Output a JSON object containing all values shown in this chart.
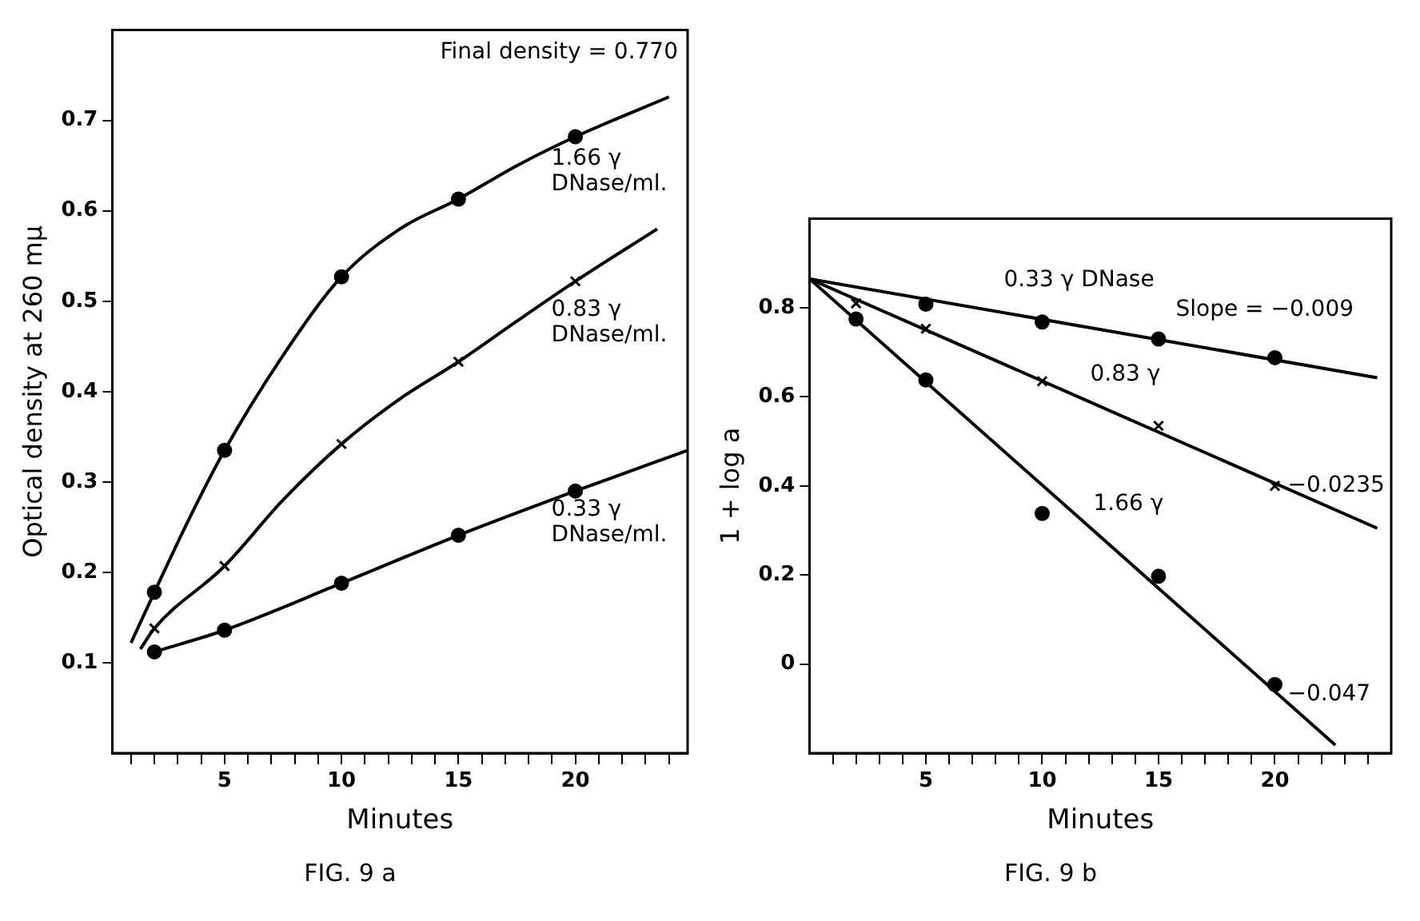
{
  "chart_data": [
    {
      "type": "scatter",
      "title": "FIG. 9 a",
      "xlabel": "Minutes",
      "ylabel": "Optical density at 260 mμ",
      "xlim": [
        0.2,
        24.8
      ],
      "ylim": [
        0,
        0.8
      ],
      "xticks": [
        {
          "value": 1,
          "label": null
        },
        {
          "value": 2,
          "label": null
        },
        {
          "value": 3,
          "label": null
        },
        {
          "value": 4,
          "label": null
        },
        5,
        {
          "value": 6,
          "label": null
        },
        {
          "value": 7,
          "label": null
        },
        {
          "value": 8,
          "label": null
        },
        {
          "value": 9,
          "label": null
        },
        10,
        {
          "value": 11,
          "label": null
        },
        {
          "value": 12,
          "label": null
        },
        {
          "value": 13,
          "label": null
        },
        {
          "value": 14,
          "label": null
        },
        15,
        {
          "value": 16,
          "label": null
        },
        {
          "value": 17,
          "label": null
        },
        {
          "value": 18,
          "label": null
        },
        {
          "value": 19,
          "label": null
        },
        20,
        {
          "value": 21,
          "label": null
        },
        {
          "value": 22,
          "label": null
        },
        {
          "value": 23,
          "label": null
        },
        {
          "value": 24,
          "label": null
        }
      ],
      "yticks": [
        0.1,
        0.2,
        0.3,
        0.4,
        0.5,
        0.6,
        0.7
      ],
      "series": [
        {
          "type": "line",
          "color": "#000000",
          "x": [
            1,
            2,
            3.5,
            5,
            7.5,
            10,
            12.5,
            15,
            17.5,
            20,
            24
          ],
          "values": [
            0.122,
            0.178,
            0.26,
            0.335,
            0.44,
            0.527,
            0.58,
            0.613,
            0.65,
            0.682,
            0.726
          ]
        },
        {
          "type": "line",
          "color": "#000000",
          "x": [
            1.4,
            2,
            5,
            7.5,
            10,
            12.5,
            15,
            17.5,
            20,
            23.5
          ],
          "values": [
            0.115,
            0.138,
            0.207,
            0.28,
            0.342,
            0.392,
            0.433,
            0.478,
            0.522,
            0.58
          ]
        },
        {
          "type": "line",
          "color": "#000000",
          "x": [
            2,
            5,
            10,
            15,
            20,
            24.8
          ],
          "values": [
            0.112,
            0.136,
            0.188,
            0.241,
            0.29,
            0.335
          ]
        },
        {
          "type": "scatter",
          "marker": "circle",
          "color": "#000000",
          "x": [
            2,
            5,
            10,
            15,
            20
          ],
          "values": [
            0.178,
            0.335,
            0.527,
            0.613,
            0.682
          ]
        },
        {
          "type": "scatter",
          "marker": "cross",
          "color": "#000000",
          "x": [
            2,
            5,
            10,
            15,
            20
          ],
          "values": [
            0.138,
            0.207,
            0.342,
            0.433,
            0.522
          ]
        },
        {
          "type": "scatter",
          "marker": "circle",
          "color": "#000000",
          "x": [
            2,
            5,
            10,
            15,
            20
          ],
          "values": [
            0.112,
            0.136,
            0.188,
            0.241,
            0.29
          ]
        }
      ],
      "annotations": [
        "Final density = 0.770",
        "1.66 γ\nDNase/ml.",
        "0.83 γ\nDNase/ml.",
        "0.33 γ\nDNase/ml."
      ]
    },
    {
      "type": "scatter",
      "title": "FIG. 9 b",
      "xlabel": "Minutes",
      "ylabel": "1 + log a",
      "xlim": [
        0,
        25
      ],
      "ylim": [
        -0.2,
        1.0
      ],
      "xticks": [
        {
          "value": 1,
          "label": null
        },
        {
          "value": 2,
          "label": null
        },
        {
          "value": 3,
          "label": null
        },
        {
          "value": 4,
          "label": null
        },
        5,
        {
          "value": 6,
          "label": null
        },
        {
          "value": 7,
          "label": null
        },
        {
          "value": 8,
          "label": null
        },
        {
          "value": 9,
          "label": null
        },
        10,
        {
          "value": 11,
          "label": null
        },
        {
          "value": 12,
          "label": null
        },
        {
          "value": 13,
          "label": null
        },
        {
          "value": 14,
          "label": null
        },
        15,
        {
          "value": 16,
          "label": null
        },
        {
          "value": 17,
          "label": null
        },
        {
          "value": 18,
          "label": null
        },
        {
          "value": 19,
          "label": null
        },
        20,
        {
          "value": 21,
          "label": null
        },
        {
          "value": 22,
          "label": null
        },
        {
          "value": 23,
          "label": null
        },
        {
          "value": 24,
          "label": null
        }
      ],
      "yticks": [
        0,
        0.2,
        0.4,
        0.6,
        0.8
      ],
      "series": [
        {
          "type": "line",
          "color": "#000000",
          "x": [
            0,
            24.4
          ],
          "values": [
            0.865,
            0.643
          ]
        },
        {
          "type": "line",
          "color": "#000000",
          "x": [
            0,
            24.4
          ],
          "values": [
            0.865,
            0.305
          ]
        },
        {
          "type": "line",
          "color": "#000000",
          "x": [
            0,
            22.6
          ],
          "values": [
            0.865,
            -0.182
          ]
        },
        {
          "type": "scatter",
          "marker": "circle",
          "color": "#000000",
          "x": [
            5,
            10,
            15,
            20
          ],
          "values": [
            0.808,
            0.768,
            0.73,
            0.688
          ]
        },
        {
          "type": "scatter",
          "marker": "cross",
          "color": "#000000",
          "x": [
            2,
            5,
            10,
            15,
            20
          ],
          "values": [
            0.81,
            0.753,
            0.635,
            0.535,
            0.4
          ]
        },
        {
          "type": "scatter",
          "marker": "circle",
          "color": "#000000",
          "x": [
            2,
            5,
            10,
            15,
            20
          ],
          "values": [
            0.775,
            0.638,
            0.338,
            0.197,
            -0.046
          ]
        }
      ],
      "annotations": [
        "0.33 γ DNase",
        "Slope = −0.009",
        "0.83 γ",
        "−0.0235",
        "1.66 γ",
        "−0.047"
      ]
    }
  ]
}
